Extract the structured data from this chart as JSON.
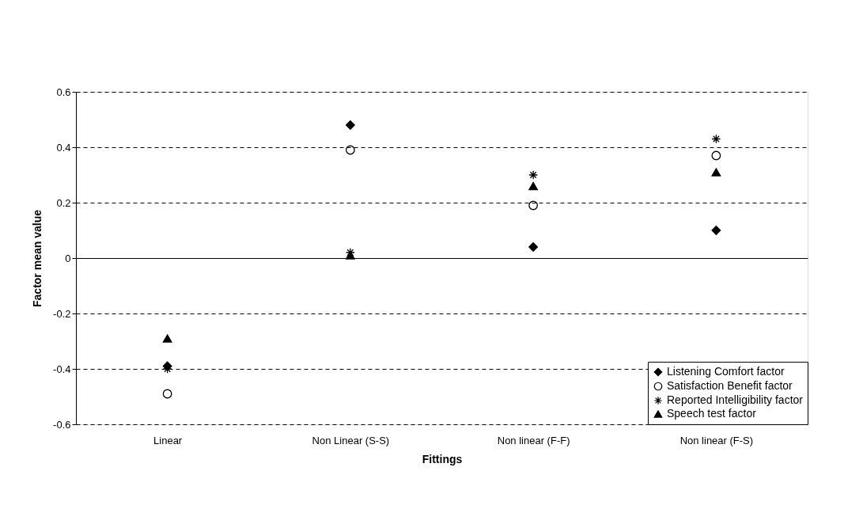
{
  "chart_data": {
    "type": "scatter",
    "xlabel": "Fittings",
    "ylabel": "Factor mean value",
    "categories": [
      "Linear",
      "Non Linear (S-S)",
      "Non linear (F-F)",
      "Non linear (F-S)"
    ],
    "ylim": [
      -0.6,
      0.6
    ],
    "yticks": [
      -0.6,
      -0.4,
      -0.2,
      0,
      0.2,
      0.4,
      0.6
    ],
    "grid": "y",
    "legend": "bottom right",
    "series": [
      {
        "name": "Listening Comfort factor",
        "color": "#000000",
        "marker": "diamond",
        "values": [
          -0.39,
          0.48,
          0.04,
          0.1
        ]
      },
      {
        "name": "Satisfaction Benefit factor",
        "color": "#000000",
        "marker": "circle",
        "values": [
          -0.49,
          0.39,
          0.19,
          0.37
        ]
      },
      {
        "name": "Reported Intelligibility factor",
        "color": "#000000",
        "marker": "cross",
        "values": [
          -0.4,
          0.02,
          0.3,
          0.43
        ]
      },
      {
        "name": "Speech test factor",
        "color": "#000000",
        "marker": "triangle",
        "values": [
          -0.29,
          0.01,
          0.26,
          0.31
        ]
      }
    ]
  }
}
